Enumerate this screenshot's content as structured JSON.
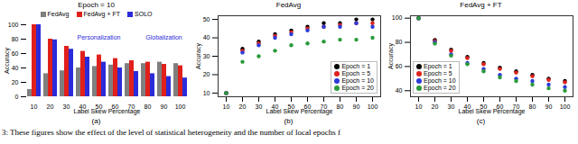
{
  "chart_data": [
    {
      "type": "bar",
      "title": "Epoch = 10",
      "caption": "(a)",
      "x_label": "Label Skew Percentage",
      "y_label": "Accuracy",
      "categories": [
        10,
        20,
        30,
        40,
        50,
        60,
        70,
        80,
        90,
        100
      ],
      "series": [
        {
          "name": "FedAvg",
          "color": "#7f7f7f",
          "values": [
            10,
            32,
            36,
            40,
            42,
            44,
            46,
            46,
            48,
            46
          ]
        },
        {
          "name": "FedAvg + FT",
          "color": "#e0201b",
          "values": [
            100,
            80,
            70,
            63,
            58,
            53,
            50,
            48,
            45,
            43
          ]
        },
        {
          "name": "SOLO",
          "color": "#2b2bd9",
          "values": [
            100,
            79,
            66,
            55,
            48,
            40,
            35,
            32,
            28,
            26
          ]
        }
      ],
      "ylim": [
        0,
        100
      ],
      "yticks": [
        0,
        20,
        40,
        60,
        80,
        100
      ],
      "legend": "top",
      "annotations": [
        {
          "text": "Personalization",
          "x": 50,
          "y": 82
        },
        {
          "text": "Globalization",
          "x": 90,
          "y": 82
        }
      ]
    },
    {
      "type": "scatter",
      "title": "FedAvg",
      "caption": "(b)",
      "x_label": "Label Skew Percentage",
      "y_label": "Accuracy",
      "x": [
        10,
        20,
        30,
        40,
        50,
        60,
        70,
        80,
        90,
        100
      ],
      "series": [
        {
          "name": "Epoch = 1",
          "color": "#000000",
          "marker": "circle",
          "values": [
            10,
            34,
            38,
            42,
            44,
            46,
            48,
            48,
            50,
            50
          ]
        },
        {
          "name": "Epoch = 5",
          "color": "#e0201b",
          "marker": "circle",
          "values": [
            10,
            33,
            37,
            41,
            43,
            45,
            46,
            47,
            48,
            48
          ]
        },
        {
          "name": "Epoch = 10",
          "color": "#2b3bd9",
          "marker": "circle",
          "values": [
            10,
            32,
            36,
            40,
            42,
            44,
            46,
            46,
            48,
            46
          ]
        },
        {
          "name": "Epoch = 20",
          "color": "#2a9a3a",
          "marker": "circle",
          "values": [
            10,
            27,
            30,
            33,
            36,
            37,
            38,
            39,
            39,
            40
          ]
        }
      ],
      "xlim": [
        5,
        105
      ],
      "xticks": [
        10,
        20,
        30,
        40,
        50,
        60,
        70,
        80,
        90,
        100
      ],
      "ylim": [
        8,
        52
      ],
      "yticks": [
        10,
        20,
        30,
        40,
        50
      ],
      "legend": "bottom-right"
    },
    {
      "type": "scatter",
      "title": "FedAvg + FT",
      "caption": "(c)",
      "x_label": "Label Skew Percentage",
      "y_label": "Accuracy",
      "x": [
        10,
        20,
        30,
        40,
        50,
        60,
        70,
        80,
        90,
        100
      ],
      "series": [
        {
          "name": "Epoch = 1",
          "color": "#000000",
          "marker": "circle",
          "values": [
            100,
            82,
            74,
            68,
            63,
            59,
            56,
            53,
            50,
            48
          ]
        },
        {
          "name": "Epoch = 5",
          "color": "#e0201b",
          "marker": "circle",
          "values": [
            100,
            81,
            73,
            67,
            62,
            58,
            55,
            52,
            49,
            47
          ]
        },
        {
          "name": "Epoch = 10",
          "color": "#2b3bd9",
          "marker": "circle",
          "values": [
            100,
            80,
            70,
            63,
            58,
            53,
            50,
            48,
            45,
            43
          ]
        },
        {
          "name": "Epoch = 20",
          "color": "#2a9a3a",
          "marker": "circle",
          "values": [
            100,
            79,
            69,
            62,
            56,
            51,
            48,
            45,
            42,
            40
          ]
        }
      ],
      "xlim": [
        5,
        105
      ],
      "xticks": [
        10,
        20,
        30,
        40,
        50,
        60,
        70,
        80,
        90,
        100
      ],
      "ylim": [
        35,
        102
      ],
      "yticks": [
        40,
        60,
        80,
        100
      ],
      "legend": "bottom-left"
    }
  ],
  "caption": "3: These figures show the effect of the level of statistical heterogeneity and the number of local epochs f"
}
